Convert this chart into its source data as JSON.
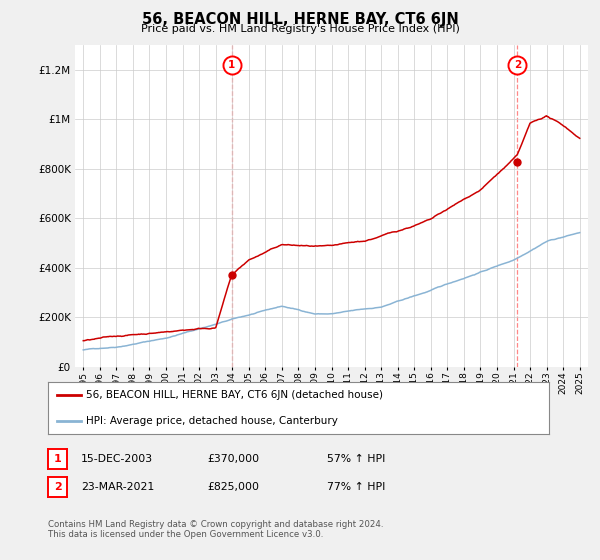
{
  "title": "56, BEACON HILL, HERNE BAY, CT6 6JN",
  "subtitle": "Price paid vs. HM Land Registry's House Price Index (HPI)",
  "yticks": [
    0,
    200000,
    400000,
    600000,
    800000,
    1000000,
    1200000
  ],
  "ylim": [
    0,
    1300000
  ],
  "xlim_min": 1994.5,
  "xlim_max": 2025.5,
  "sale1_date_num": 2003.96,
  "sale1_price": 370000,
  "sale2_date_num": 2021.23,
  "sale2_price": 825000,
  "line_color_red": "#cc0000",
  "line_color_blue": "#8ab4d4",
  "vline_color": "#ff8888",
  "legend_label_red": "56, BEACON HILL, HERNE BAY, CT6 6JN (detached house)",
  "legend_label_blue": "HPI: Average price, detached house, Canterbury",
  "sale1_date_str": "15-DEC-2003",
  "sale1_price_str": "£370,000",
  "sale1_pct_str": "57% ↑ HPI",
  "sale2_date_str": "23-MAR-2021",
  "sale2_price_str": "£825,000",
  "sale2_pct_str": "77% ↑ HPI",
  "footnote": "Contains HM Land Registry data © Crown copyright and database right 2024.\nThis data is licensed under the Open Government Licence v3.0.",
  "background_color": "#f0f0f0",
  "plot_background": "#ffffff"
}
